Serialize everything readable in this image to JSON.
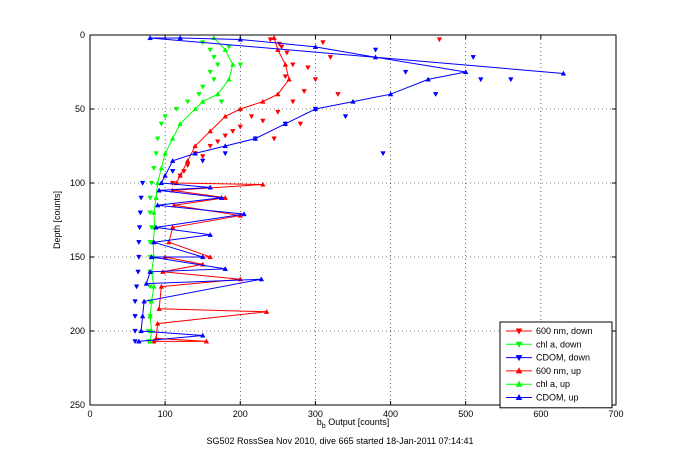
{
  "chart_data": {
    "type": "scatter",
    "xlabel_main": "b",
    "xlabel_sub": "b",
    "xlabel_rest": " Output [counts]",
    "ylabel": "Depth [counts]",
    "caption": "SG502 RossSea Nov 2010, dive 665 started 18-Jan-2011 07:14:41",
    "xlim": [
      0,
      700
    ],
    "ylim": [
      0,
      250
    ],
    "y_reversed": true,
    "grid": true,
    "legend_position": "bottom-right",
    "x_ticks": [
      "0",
      "100",
      "200",
      "300",
      "400",
      "500",
      "600",
      "700"
    ],
    "y_ticks": [
      "0",
      "50",
      "100",
      "150",
      "200",
      "250"
    ],
    "series": [
      {
        "name": "600 nm, down",
        "color": "#ff0000",
        "marker": "triangle-down",
        "line": false,
        "points": [
          [
            240,
            3
          ],
          [
            252,
            6
          ],
          [
            262,
            12
          ],
          [
            270,
            20
          ],
          [
            255,
            8
          ],
          [
            310,
            5
          ],
          [
            320,
            15
          ],
          [
            290,
            22
          ],
          [
            300,
            30
          ],
          [
            285,
            38
          ],
          [
            270,
            45
          ],
          [
            250,
            52
          ],
          [
            230,
            58
          ],
          [
            200,
            62
          ],
          [
            180,
            68
          ],
          [
            160,
            75
          ],
          [
            140,
            80
          ],
          [
            130,
            88
          ],
          [
            120,
            95
          ],
          [
            110,
            100
          ],
          [
            260,
            28
          ],
          [
            330,
            40
          ],
          [
            215,
            55
          ],
          [
            190,
            65
          ],
          [
            170,
            72
          ],
          [
            150,
            82
          ],
          [
            125,
            92
          ],
          [
            465,
            3
          ],
          [
            280,
            60
          ],
          [
            245,
            70
          ]
        ]
      },
      {
        "name": "chl a, down",
        "color": "#00ff00",
        "marker": "triangle-down",
        "line": false,
        "points": [
          [
            150,
            5
          ],
          [
            160,
            10
          ],
          [
            165,
            15
          ],
          [
            170,
            20
          ],
          [
            160,
            25
          ],
          [
            165,
            30
          ],
          [
            150,
            35
          ],
          [
            145,
            40
          ],
          [
            130,
            45
          ],
          [
            115,
            50
          ],
          [
            100,
            55
          ],
          [
            95,
            60
          ],
          [
            90,
            70
          ],
          [
            88,
            80
          ],
          [
            85,
            90
          ],
          [
            82,
            100
          ],
          [
            80,
            110
          ],
          [
            80,
            120
          ],
          [
            82,
            130
          ],
          [
            80,
            140
          ],
          [
            80,
            150
          ],
          [
            80,
            160
          ],
          [
            80,
            170
          ],
          [
            80,
            180
          ],
          [
            80,
            190
          ],
          [
            78,
            200
          ],
          [
            78,
            207
          ],
          [
            185,
            8
          ],
          [
            200,
            20
          ],
          [
            175,
            45
          ]
        ]
      },
      {
        "name": "CDOM, down",
        "color": "#0000ff",
        "marker": "triangle-down",
        "line": false,
        "points": [
          [
            70,
            100
          ],
          [
            68,
            110
          ],
          [
            67,
            120
          ],
          [
            66,
            130
          ],
          [
            65,
            140
          ],
          [
            65,
            150
          ],
          [
            64,
            160
          ],
          [
            62,
            170
          ],
          [
            60,
            180
          ],
          [
            60,
            190
          ],
          [
            60,
            200
          ],
          [
            60,
            207
          ],
          [
            380,
            10
          ],
          [
            420,
            25
          ],
          [
            460,
            40
          ],
          [
            520,
            30
          ],
          [
            300,
            50
          ],
          [
            260,
            60
          ],
          [
            220,
            70
          ],
          [
            180,
            80
          ],
          [
            150,
            85
          ],
          [
            110,
            92
          ],
          [
            390,
            80
          ],
          [
            340,
            55
          ],
          [
            510,
            15
          ],
          [
            560,
            30
          ]
        ]
      },
      {
        "name": "600 nm, up",
        "color": "#ff0000",
        "marker": "triangle-up",
        "line": true,
        "points": [
          [
            85,
            207
          ],
          [
            155,
            207
          ],
          [
            88,
            205
          ],
          [
            90,
            195
          ],
          [
            235,
            187
          ],
          [
            92,
            185
          ],
          [
            95,
            170
          ],
          [
            200,
            165
          ],
          [
            97,
            160
          ],
          [
            150,
            155
          ],
          [
            100,
            150
          ],
          [
            160,
            150
          ],
          [
            105,
            140
          ],
          [
            110,
            130
          ],
          [
            200,
            122
          ],
          [
            112,
            115
          ],
          [
            180,
            110
          ],
          [
            110,
            105
          ],
          [
            230,
            101
          ],
          [
            115,
            100
          ],
          [
            120,
            95
          ],
          [
            130,
            85
          ],
          [
            140,
            75
          ],
          [
            160,
            65
          ],
          [
            180,
            55
          ],
          [
            200,
            50
          ],
          [
            230,
            45
          ],
          [
            250,
            40
          ],
          [
            265,
            30
          ],
          [
            260,
            20
          ],
          [
            250,
            10
          ],
          [
            245,
            2
          ]
        ]
      },
      {
        "name": "chl a, up",
        "color": "#00ff00",
        "marker": "triangle-up",
        "line": true,
        "points": [
          [
            80,
            207
          ],
          [
            82,
            200
          ],
          [
            80,
            190
          ],
          [
            82,
            180
          ],
          [
            85,
            170
          ],
          [
            82,
            160
          ],
          [
            85,
            150
          ],
          [
            84,
            140
          ],
          [
            86,
            130
          ],
          [
            85,
            120
          ],
          [
            88,
            110
          ],
          [
            90,
            100
          ],
          [
            95,
            90
          ],
          [
            100,
            80
          ],
          [
            110,
            70
          ],
          [
            120,
            60
          ],
          [
            140,
            50
          ],
          [
            150,
            45
          ],
          [
            170,
            40
          ],
          [
            185,
            30
          ],
          [
            190,
            20
          ],
          [
            180,
            10
          ],
          [
            165,
            2
          ]
        ]
      },
      {
        "name": "CDOM, up",
        "color": "#0000ff",
        "marker": "triangle-up",
        "line": true,
        "points": [
          [
            65,
            207
          ],
          [
            150,
            203
          ],
          [
            68,
            200
          ],
          [
            70,
            190
          ],
          [
            72,
            180
          ],
          [
            228,
            165
          ],
          [
            75,
            168
          ],
          [
            80,
            160
          ],
          [
            180,
            158
          ],
          [
            82,
            150
          ],
          [
            150,
            150
          ],
          [
            85,
            140
          ],
          [
            160,
            135
          ],
          [
            88,
            130
          ],
          [
            205,
            121
          ],
          [
            90,
            115
          ],
          [
            175,
            110
          ],
          [
            92,
            105
          ],
          [
            160,
            103
          ],
          [
            95,
            100
          ],
          [
            100,
            95
          ],
          [
            110,
            85
          ],
          [
            140,
            80
          ],
          [
            180,
            75
          ],
          [
            220,
            70
          ],
          [
            260,
            60
          ],
          [
            300,
            50
          ],
          [
            350,
            45
          ],
          [
            400,
            40
          ],
          [
            450,
            30
          ],
          [
            500,
            25
          ],
          [
            380,
            15
          ],
          [
            300,
            8
          ],
          [
            200,
            3
          ],
          [
            120,
            2
          ],
          [
            80,
            2
          ],
          [
            630,
            26
          ]
        ]
      }
    ]
  }
}
